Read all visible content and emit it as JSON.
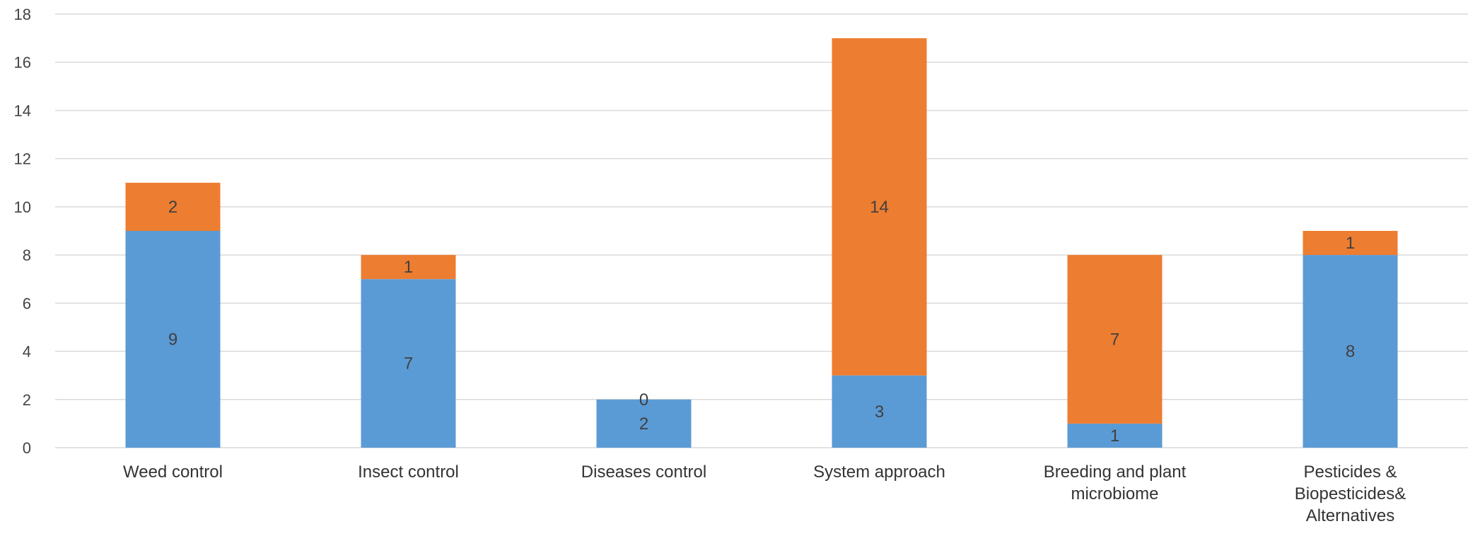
{
  "chart_data": {
    "type": "bar",
    "stacked": true,
    "categories": [
      [
        "Weed control"
      ],
      [
        "Insect control"
      ],
      [
        "Diseases control"
      ],
      [
        "System approach"
      ],
      [
        "Breeding and plant",
        "microbiome"
      ],
      [
        "Pesticides &",
        "Biopesticides&",
        "Alternatives"
      ]
    ],
    "series": [
      {
        "values": [
          9,
          7,
          2,
          3,
          1,
          8
        ],
        "color": "#5b9bd5"
      },
      {
        "values": [
          2,
          1,
          0,
          14,
          7,
          1
        ],
        "color": "#ed7d31"
      }
    ],
    "ylim": [
      0,
      18
    ],
    "yticks": [
      0,
      2,
      4,
      6,
      8,
      10,
      12,
      14,
      16,
      18
    ],
    "grid": true,
    "legend": "none",
    "title": "",
    "xlabel": "",
    "ylabel": ""
  }
}
